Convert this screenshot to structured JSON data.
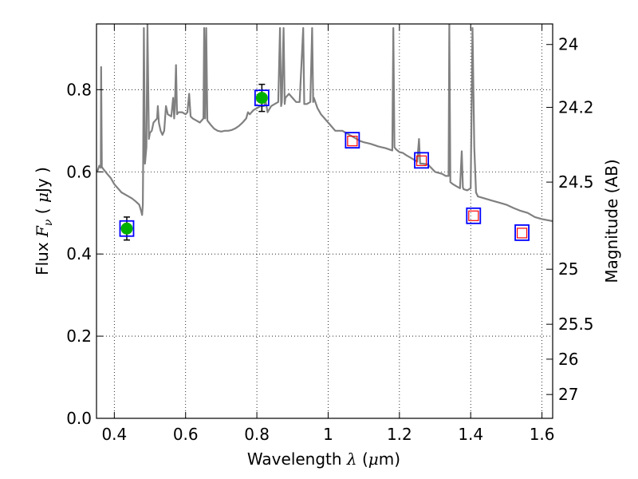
{
  "chart_data": {
    "type": "line",
    "xlabel": "Wavelength  λ (μm)",
    "ylabel": "Flux  Fν  ( μJy )",
    "ylabel_right": "Magnitude (AB)",
    "xlim": [
      0.35,
      1.63
    ],
    "ylim": [
      0.0,
      0.96
    ],
    "grid": true,
    "grid_style": "dotted",
    "x_ticks": [
      0.4,
      0.6,
      0.8,
      1.0,
      1.2,
      1.4,
      1.6
    ],
    "x_tick_labels": [
      "0.4",
      "0.6",
      "0.8",
      "1",
      "1.2",
      "1.4",
      "1.6"
    ],
    "y_ticks": [
      0.0,
      0.2,
      0.4,
      0.6,
      0.8
    ],
    "y_tick_labels": [
      "0.0",
      "0.2",
      "0.4",
      "0.6",
      "0.8"
    ],
    "right_ticks": [
      {
        "label": "24",
        "flux": 0.91
      },
      {
        "label": "24.2",
        "flux": 0.757
      },
      {
        "label": "24.5",
        "flux": 0.575
      },
      {
        "label": "25",
        "flux": 0.363
      },
      {
        "label": "25.5",
        "flux": 0.229
      },
      {
        "label": "26",
        "flux": 0.144
      },
      {
        "label": "27",
        "flux": 0.058
      }
    ],
    "colors": {
      "model": "#808080",
      "observed": "#00b000",
      "model_box": "#0000ff",
      "predicted": "#ff0000",
      "errorbar": "#000000"
    },
    "series": [
      {
        "name": "model spectrum",
        "points": [
          [
            0.352,
            0.6
          ],
          [
            0.358,
            0.615
          ],
          [
            0.362,
            0.61
          ],
          [
            0.363,
            0.855
          ],
          [
            0.365,
            0.612
          ],
          [
            0.37,
            0.606
          ],
          [
            0.38,
            0.595
          ],
          [
            0.39,
            0.585
          ],
          [
            0.4,
            0.57
          ],
          [
            0.41,
            0.56
          ],
          [
            0.42,
            0.55
          ],
          [
            0.43,
            0.545
          ],
          [
            0.44,
            0.54
          ],
          [
            0.45,
            0.535
          ],
          [
            0.46,
            0.528
          ],
          [
            0.47,
            0.52
          ],
          [
            0.475,
            0.505
          ],
          [
            0.478,
            0.495
          ],
          [
            0.48,
            0.52
          ],
          [
            0.481,
            0.62
          ],
          [
            0.483,
            0.95
          ],
          [
            0.486,
            0.62
          ],
          [
            0.49,
            0.66
          ],
          [
            0.493,
            0.96
          ],
          [
            0.497,
            0.68
          ],
          [
            0.5,
            0.695
          ],
          [
            0.505,
            0.7
          ],
          [
            0.51,
            0.72
          ],
          [
            0.52,
            0.73
          ],
          [
            0.522,
            0.76
          ],
          [
            0.525,
            0.72
          ],
          [
            0.53,
            0.7
          ],
          [
            0.535,
            0.69
          ],
          [
            0.54,
            0.7
          ],
          [
            0.545,
            0.76
          ],
          [
            0.55,
            0.74
          ],
          [
            0.56,
            0.735
          ],
          [
            0.565,
            0.78
          ],
          [
            0.568,
            0.73
          ],
          [
            0.57,
            0.76
          ],
          [
            0.573,
            0.86
          ],
          [
            0.576,
            0.74
          ],
          [
            0.58,
            0.745
          ],
          [
            0.59,
            0.745
          ],
          [
            0.6,
            0.74
          ],
          [
            0.605,
            0.745
          ],
          [
            0.61,
            0.79
          ],
          [
            0.614,
            0.735
          ],
          [
            0.62,
            0.73
          ],
          [
            0.63,
            0.725
          ],
          [
            0.64,
            0.72
          ],
          [
            0.65,
            0.73
          ],
          [
            0.652,
            0.95
          ],
          [
            0.655,
            0.73
          ],
          [
            0.658,
            0.95
          ],
          [
            0.661,
            0.725
          ],
          [
            0.67,
            0.715
          ],
          [
            0.68,
            0.705
          ],
          [
            0.69,
            0.7
          ],
          [
            0.7,
            0.698
          ],
          [
            0.71,
            0.7
          ],
          [
            0.72,
            0.7
          ],
          [
            0.73,
            0.702
          ],
          [
            0.74,
            0.706
          ],
          [
            0.75,
            0.712
          ],
          [
            0.76,
            0.72
          ],
          [
            0.77,
            0.73
          ],
          [
            0.775,
            0.745
          ],
          [
            0.78,
            0.74
          ],
          [
            0.79,
            0.75
          ],
          [
            0.8,
            0.755
          ],
          [
            0.81,
            0.76
          ],
          [
            0.82,
            0.76
          ],
          [
            0.825,
            0.77
          ],
          [
            0.83,
            0.745
          ],
          [
            0.84,
            0.76
          ],
          [
            0.85,
            0.765
          ],
          [
            0.86,
            0.77
          ],
          [
            0.865,
            0.95
          ],
          [
            0.868,
            0.76
          ],
          [
            0.87,
            0.77
          ],
          [
            0.875,
            0.95
          ],
          [
            0.878,
            0.765
          ],
          [
            0.88,
            0.78
          ],
          [
            0.89,
            0.79
          ],
          [
            0.9,
            0.78
          ],
          [
            0.91,
            0.77
          ],
          [
            0.92,
            0.77
          ],
          [
            0.93,
            0.95
          ],
          [
            0.933,
            0.765
          ],
          [
            0.94,
            0.765
          ],
          [
            0.95,
            0.77
          ],
          [
            0.955,
            0.95
          ],
          [
            0.958,
            0.77
          ],
          [
            0.96,
            0.78
          ],
          [
            0.97,
            0.755
          ],
          [
            0.98,
            0.74
          ],
          [
            0.99,
            0.73
          ],
          [
            1.0,
            0.72
          ],
          [
            1.01,
            0.71
          ],
          [
            1.02,
            0.7
          ],
          [
            1.03,
            0.7
          ],
          [
            1.04,
            0.7
          ],
          [
            1.05,
            0.695
          ],
          [
            1.06,
            0.69
          ],
          [
            1.07,
            0.685
          ],
          [
            1.08,
            0.68
          ],
          [
            1.09,
            0.675
          ],
          [
            1.1,
            0.672
          ],
          [
            1.11,
            0.67
          ],
          [
            1.12,
            0.668
          ],
          [
            1.13,
            0.665
          ],
          [
            1.14,
            0.662
          ],
          [
            1.15,
            0.66
          ],
          [
            1.16,
            0.658
          ],
          [
            1.17,
            0.655
          ],
          [
            1.18,
            0.652
          ],
          [
            1.183,
            0.95
          ],
          [
            1.186,
            0.66
          ],
          [
            1.19,
            0.655
          ],
          [
            1.2,
            0.648
          ],
          [
            1.21,
            0.646
          ],
          [
            1.22,
            0.64
          ],
          [
            1.23,
            0.635
          ],
          [
            1.24,
            0.63
          ],
          [
            1.25,
            0.625
          ],
          [
            1.255,
            0.68
          ],
          [
            1.258,
            0.62
          ],
          [
            1.265,
            0.62
          ],
          [
            1.28,
            0.618
          ],
          [
            1.3,
            0.6
          ],
          [
            1.32,
            0.595
          ],
          [
            1.33,
            0.59
          ],
          [
            1.338,
            0.59
          ],
          [
            1.34,
            0.96
          ],
          [
            1.343,
            0.575
          ],
          [
            1.35,
            0.57
          ],
          [
            1.36,
            0.565
          ],
          [
            1.37,
            0.56
          ],
          [
            1.375,
            0.65
          ],
          [
            1.378,
            0.562
          ],
          [
            1.38,
            0.558
          ],
          [
            1.39,
            0.555
          ],
          [
            1.4,
            0.56
          ],
          [
            1.405,
            0.95
          ],
          [
            1.41,
            0.66
          ],
          [
            1.415,
            0.55
          ],
          [
            1.42,
            0.54
          ],
          [
            1.44,
            0.535
          ],
          [
            1.46,
            0.53
          ],
          [
            1.48,
            0.525
          ],
          [
            1.5,
            0.52
          ],
          [
            1.52,
            0.512
          ],
          [
            1.54,
            0.505
          ],
          [
            1.56,
            0.5
          ],
          [
            1.58,
            0.49
          ],
          [
            1.6,
            0.485
          ],
          [
            1.63,
            0.48
          ]
        ]
      },
      {
        "name": "observed photometry",
        "points": [
          {
            "x": 0.435,
            "y": 0.462,
            "yerr": 0.028
          },
          {
            "x": 0.814,
            "y": 0.78,
            "yerr": 0.033
          }
        ]
      },
      {
        "name": "model photometry",
        "points": [
          {
            "x": 0.435,
            "y": 0.462
          },
          {
            "x": 0.814,
            "y": 0.78
          },
          {
            "x": 1.068,
            "y": 0.677
          },
          {
            "x": 1.262,
            "y": 0.628
          },
          {
            "x": 1.408,
            "y": 0.493
          },
          {
            "x": 1.544,
            "y": 0.452
          }
        ]
      },
      {
        "name": "predicted photometry",
        "points": [
          {
            "x": 1.068,
            "y": 0.675
          },
          {
            "x": 1.262,
            "y": 0.627
          },
          {
            "x": 1.408,
            "y": 0.493
          },
          {
            "x": 1.544,
            "y": 0.451
          }
        ]
      }
    ]
  }
}
